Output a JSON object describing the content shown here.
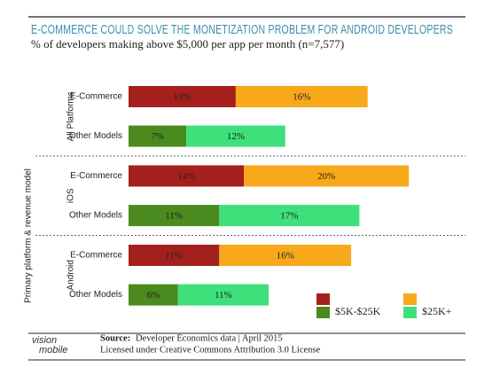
{
  "chart_data": {
    "type": "bar",
    "orientation": "horizontal",
    "stacked": true,
    "title": "E-COMMERCE COULD SOLVE THE MONETIZATION PROBLEM FOR ANDROID DEVELOPERS",
    "subtitle": "% of developers making above $5,000 per app per month (n=7,577)",
    "y_label": "Primary platform & revenue model",
    "groups": [
      "All Platforms",
      "iOS",
      "Android"
    ],
    "categories": [
      "E-Commerce",
      "Other Models",
      "E-Commerce",
      "Other Models",
      "E-Commerce",
      "Other Models"
    ],
    "series": [
      {
        "name": "$5K-$25K",
        "colors": [
          "#a3201c",
          "#4b8a1e"
        ],
        "values": [
          13,
          7,
          14,
          11,
          11,
          6
        ],
        "value_labels": [
          "13%",
          "7%",
          "14%",
          "11%",
          "11%",
          "6%"
        ]
      },
      {
        "name": "$25K+",
        "colors": [
          "#f7a81b",
          "#3de07b"
        ],
        "values": [
          16,
          12,
          20,
          17,
          16,
          11
        ],
        "value_labels": [
          "16%",
          "12%",
          "20%",
          "17%",
          "16%",
          "11%"
        ]
      }
    ],
    "source_label": "Source:",
    "source": "Developer Economics data | April 2015",
    "license": "Licensed under Creative Commons Attribution 3.0 License",
    "logo": [
      "vision",
      "mobile"
    ]
  }
}
